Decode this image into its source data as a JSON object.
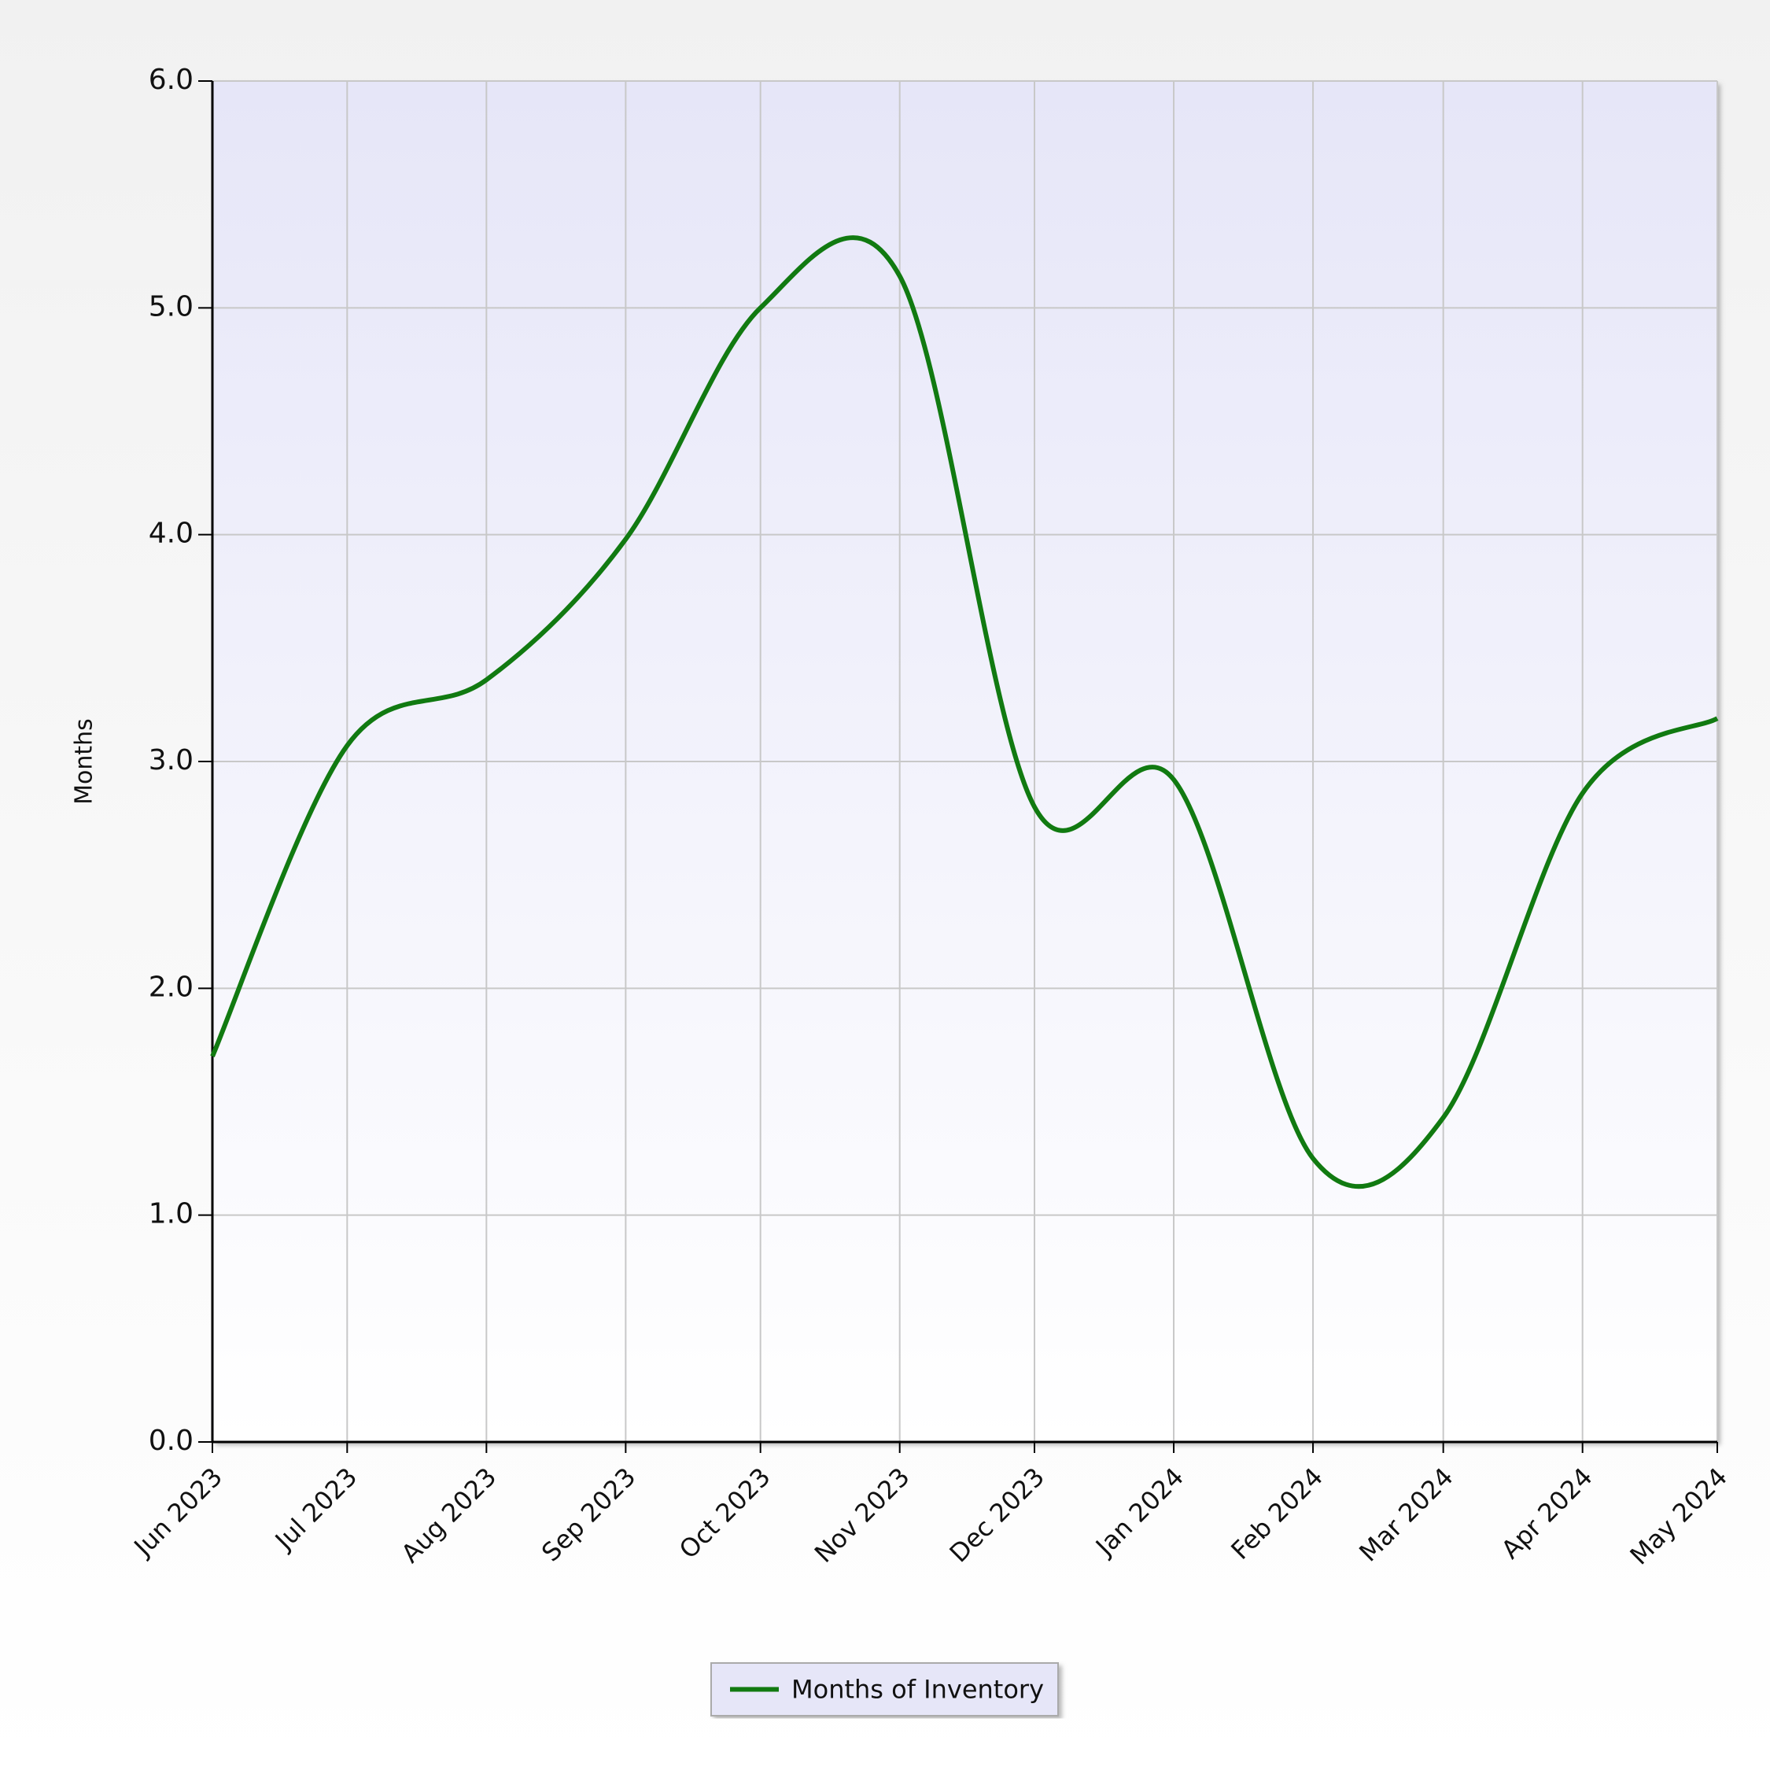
{
  "chart_data": {
    "type": "line",
    "y_label": "Months",
    "categories": [
      "Jun 2023",
      "Jul 2023",
      "Aug 2023",
      "Sep 2023",
      "Oct 2023",
      "Nov 2023",
      "Dec 2023",
      "Jan 2024",
      "Feb 2024",
      "Mar 2024",
      "Apr 2024",
      "May 2024"
    ],
    "series": [
      {
        "name": "Months of Inventory",
        "color": "#117a11",
        "values": [
          1.7,
          3.07,
          3.36,
          3.98,
          5.0,
          5.14,
          2.8,
          2.92,
          1.25,
          1.43,
          2.86,
          3.19
        ]
      }
    ],
    "ylim": [
      0,
      6
    ],
    "yticks": [
      {
        "value": 0,
        "label": "0.0"
      },
      {
        "value": 1,
        "label": "1.0"
      },
      {
        "value": 2,
        "label": "2.0"
      },
      {
        "value": 3,
        "label": "3.0"
      },
      {
        "value": 4,
        "label": "4.0"
      },
      {
        "value": 5,
        "label": "5.0"
      },
      {
        "value": 6,
        "label": "6.0"
      }
    ],
    "grid": true,
    "legend": "bottom"
  }
}
